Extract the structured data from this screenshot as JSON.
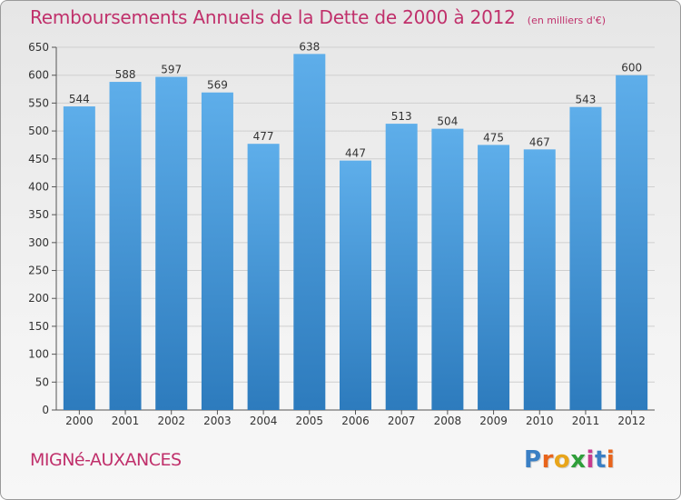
{
  "header": {
    "title": "Remboursements Annuels de la Dette de 2000 à 2012",
    "unit": "(en milliers d'€)"
  },
  "footer": {
    "place": "MIGNé-AUXANCES",
    "brand_letters": [
      "P",
      "r",
      "o",
      "x",
      "i",
      "t",
      "i"
    ],
    "brand_colors": [
      "#3a7fc4",
      "#e8641b",
      "#e8a51b",
      "#2f9e3a",
      "#c73b8f",
      "#3a7fc4",
      "#e8641b"
    ]
  },
  "colors": {
    "bar_top": "#5eaeea",
    "bar_bottom": "#2d7bbd",
    "grid": "#cfcfcf",
    "axis": "#555555"
  },
  "chart_data": {
    "type": "bar",
    "categories": [
      "2000",
      "2001",
      "2002",
      "2003",
      "2004",
      "2005",
      "2006",
      "2007",
      "2008",
      "2009",
      "2010",
      "2011",
      "2012"
    ],
    "values": [
      544,
      588,
      597,
      569,
      477,
      638,
      447,
      513,
      504,
      475,
      467,
      543,
      600
    ],
    "ylim": [
      0,
      650
    ],
    "yticks": [
      0,
      50,
      100,
      150,
      200,
      250,
      300,
      350,
      400,
      450,
      500,
      550,
      600,
      650
    ],
    "grid": true,
    "data_labels": true
  }
}
